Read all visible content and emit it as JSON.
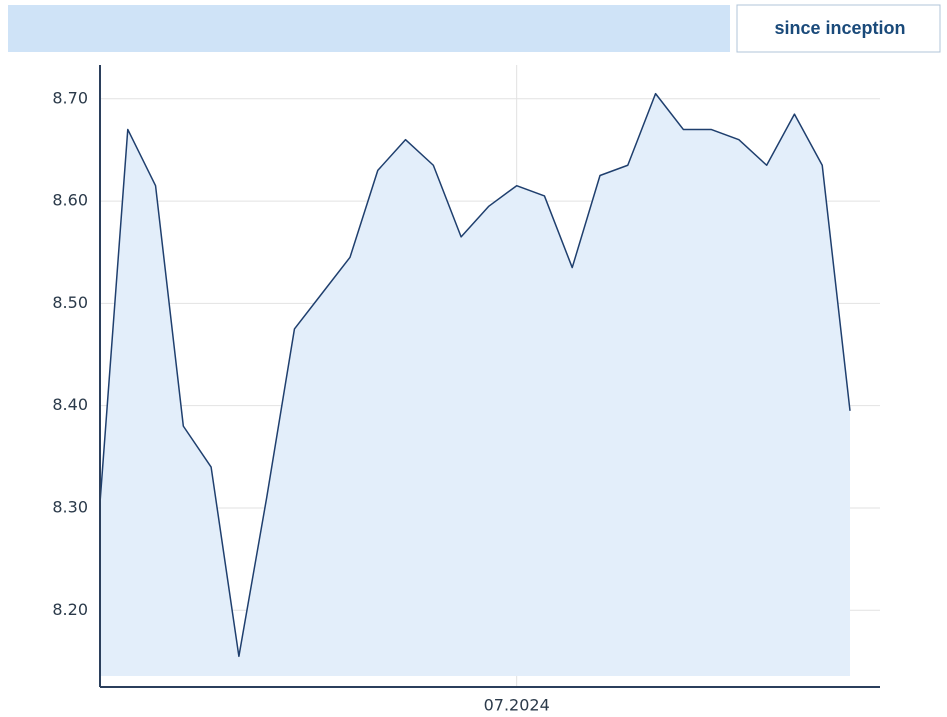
{
  "tab_label": "since inception",
  "chart_data": {
    "type": "area",
    "categories": [
      null,
      null,
      null,
      null,
      null,
      null,
      null,
      null,
      null,
      null,
      null,
      null,
      null,
      null,
      null,
      "07.2024",
      null,
      null,
      null,
      null,
      null,
      null,
      null,
      null,
      null,
      null,
      null,
      null
    ],
    "values": [
      8.305,
      8.67,
      8.615,
      8.38,
      8.34,
      8.155,
      8.31,
      8.475,
      8.51,
      8.545,
      8.63,
      8.66,
      8.635,
      8.565,
      8.595,
      8.615,
      8.605,
      8.535,
      8.625,
      8.635,
      8.705,
      8.67,
      8.67,
      8.66,
      8.635,
      8.685,
      8.635,
      8.395
    ],
    "color": "#1f3f6e",
    "fill": "#e3eefa",
    "ylim": [
      8.125,
      8.733
    ],
    "yticks": [
      {
        "value": 8.2,
        "label": "8.20"
      },
      {
        "value": 8.3,
        "label": "8.30"
      },
      {
        "value": 8.4,
        "label": "8.40"
      },
      {
        "value": 8.5,
        "label": "8.50"
      },
      {
        "value": 8.6,
        "label": "8.60"
      },
      {
        "value": 8.7,
        "label": "8.70"
      }
    ],
    "grid": true
  }
}
